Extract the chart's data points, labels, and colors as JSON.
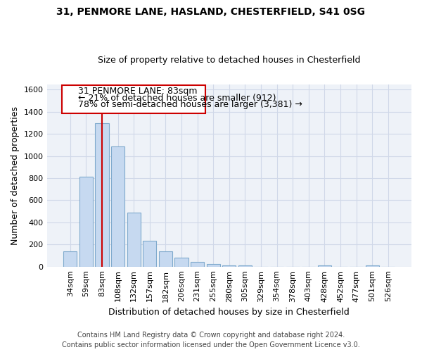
{
  "title": "31, PENMORE LANE, HASLAND, CHESTERFIELD, S41 0SG",
  "subtitle": "Size of property relative to detached houses in Chesterfield",
  "xlabel": "Distribution of detached houses by size in Chesterfield",
  "ylabel": "Number of detached properties",
  "footer_line1": "Contains HM Land Registry data © Crown copyright and database right 2024.",
  "footer_line2": "Contains public sector information licensed under the Open Government Licence v3.0.",
  "annotation_line1": "31 PENMORE LANE: 83sqm",
  "annotation_line2": "← 21% of detached houses are smaller (912)",
  "annotation_line3": "78% of semi-detached houses are larger (3,381) →",
  "categories": [
    "34sqm",
    "59sqm",
    "83sqm",
    "108sqm",
    "132sqm",
    "157sqm",
    "182sqm",
    "206sqm",
    "231sqm",
    "255sqm",
    "280sqm",
    "305sqm",
    "329sqm",
    "354sqm",
    "378sqm",
    "403sqm",
    "428sqm",
    "452sqm",
    "477sqm",
    "501sqm",
    "526sqm"
  ],
  "values": [
    140,
    810,
    1300,
    1090,
    490,
    235,
    135,
    80,
    45,
    22,
    12,
    12,
    0,
    0,
    0,
    0,
    12,
    0,
    0,
    12,
    0
  ],
  "bar_color": "#c6d9f0",
  "bar_edge_color": "#7faacd",
  "vline_x": 2,
  "vline_color": "#cc0000",
  "annotation_box_edge_color": "#cc0000",
  "annotation_box_face_color": "#ffffff",
  "ylim": [
    0,
    1650
  ],
  "yticks": [
    0,
    200,
    400,
    600,
    800,
    1000,
    1200,
    1400,
    1600
  ],
  "grid_color": "#d0d8e8",
  "background_color": "#eef2f8",
  "title_fontsize": 10,
  "subtitle_fontsize": 9,
  "xlabel_fontsize": 9,
  "ylabel_fontsize": 9,
  "tick_fontsize": 8,
  "annotation_fontsize": 9,
  "footer_fontsize": 7
}
